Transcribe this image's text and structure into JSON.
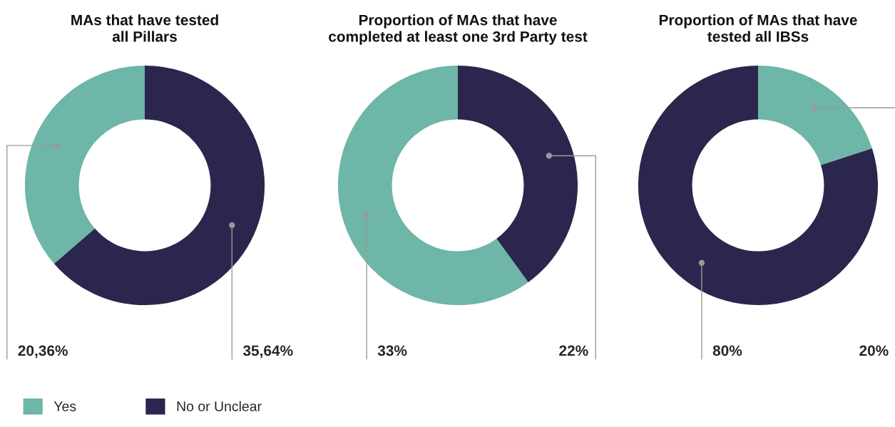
{
  "chart_data": [
    {
      "type": "donut",
      "title": "MAs that have tested\nall Pillars",
      "categories": [
        "Yes",
        "No or Unclear"
      ],
      "values": [
        20.36,
        35.64
      ],
      "colors": [
        "#6db6a8",
        "#2b264d"
      ],
      "value_labels": [
        "20,36%",
        "35,64%"
      ],
      "legend": "bottom left"
    },
    {
      "type": "donut",
      "title": "Proportion of MAs that have\ncompleted at least one 3rd Party test",
      "categories": [
        null,
        null
      ],
      "values": [
        33,
        22
      ],
      "colors": [
        "#6db6a8",
        "#2b264d"
      ],
      "value_labels": [
        "33%",
        "22%"
      ]
    },
    {
      "type": "donut",
      "title": "Proportion of MAs that have\ntested all IBSs",
      "categories": [
        null,
        null
      ],
      "values": [
        80,
        20
      ],
      "colors": [
        "#2b264d",
        "#6db6a8"
      ],
      "value_labels": [
        "80%",
        "20%"
      ]
    }
  ]
}
